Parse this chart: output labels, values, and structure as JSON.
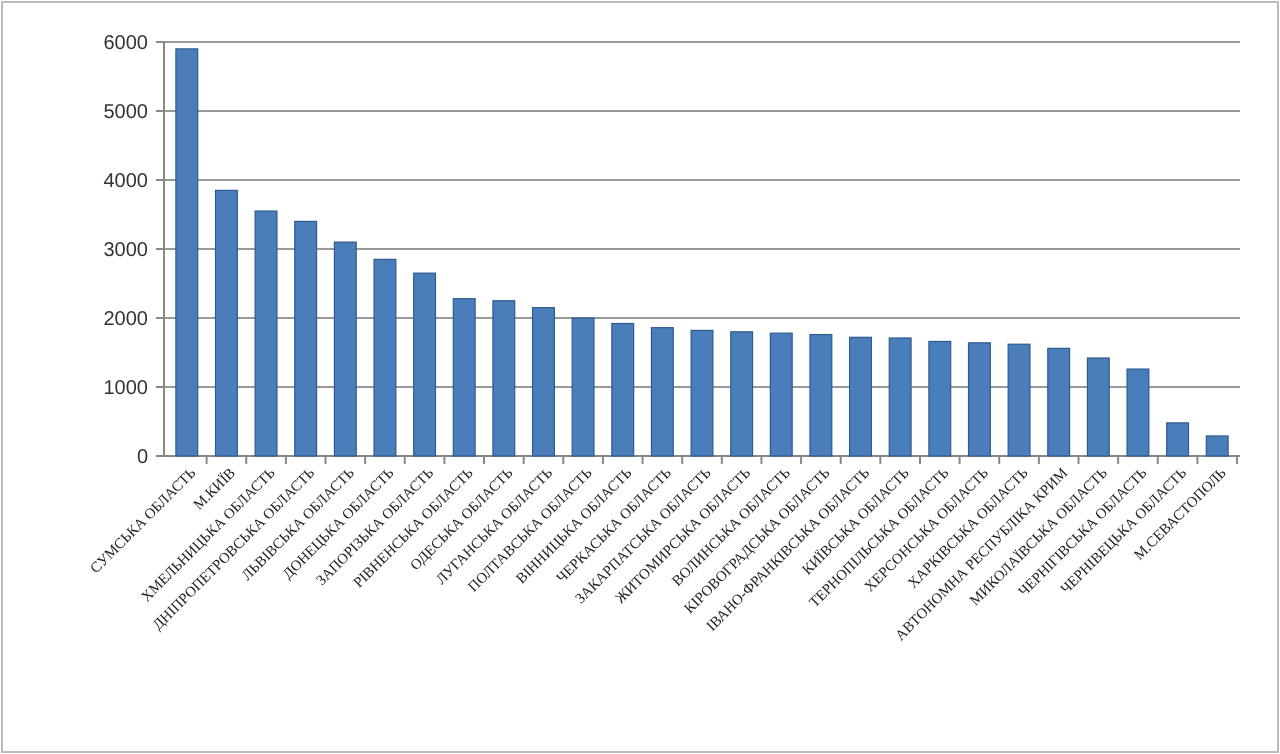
{
  "chart_data": {
    "type": "bar",
    "categories": [
      "СУМСЬКА ОБЛАСТЬ",
      "М.КИЇВ",
      "ХМЕЛЬНИЦЬКА ОБЛАСТЬ",
      "ДНІПРОПЕТРОВСЬКА ОБЛАСТЬ",
      "ЛЬВІВСЬКА ОБЛАСТЬ",
      "ДОНЕЦЬКА ОБЛАСТЬ",
      "ЗАПОРІЗЬКА ОБЛАСТЬ",
      "РІВНЕНСЬКА ОБЛАСТЬ",
      "ОДЕСЬКА ОБЛАСТЬ",
      "ЛУГАНСЬКА ОБЛАСТЬ",
      "ПОЛТАВСЬКА ОБЛАСТЬ",
      "ВІННИЦЬКА ОБЛАСТЬ",
      "ЧЕРКАСЬКА ОБЛАСТЬ",
      "ЗАКАРПАТСЬКА ОБЛАСТЬ",
      "ЖИТОМИРСЬКА ОБЛАСТЬ",
      "ВОЛИНСЬКА ОБЛАСТЬ",
      "КІРОВОГРАДСЬКА ОБЛАСТЬ",
      "ІВАНО-ФРАНКІВСЬКА ОБЛАСТЬ",
      "КИЇВСЬКА ОБЛАСТЬ",
      "ТЕРНОПІЛЬСЬКА ОБЛАСТЬ",
      "ХЕРСОНСЬКА ОБЛАСТЬ",
      "ХАРКІВСЬКА ОБЛАСТЬ",
      "АВТОНОМНА РЕСПУБЛІКА КРИМ",
      "МИКОЛАЇВСЬКА ОБЛАСТЬ",
      "ЧЕРНІГІВСЬКА ОБЛАСТЬ",
      "ЧЕРНІВЕЦЬКА ОБЛАСТЬ",
      "М.СЕВАСТОПОЛЬ"
    ],
    "values": [
      5900,
      3850,
      3550,
      3400,
      3100,
      2850,
      2650,
      2280,
      2250,
      2150,
      2000,
      1920,
      1860,
      1820,
      1800,
      1780,
      1760,
      1720,
      1710,
      1660,
      1640,
      1620,
      1560,
      1420,
      1260,
      480,
      290
    ],
    "color": "#4a7ebb",
    "ylim": [
      0,
      6000
    ],
    "yticks": [
      0,
      1000,
      2000,
      3000,
      4000,
      5000,
      6000
    ],
    "grid": "y"
  }
}
